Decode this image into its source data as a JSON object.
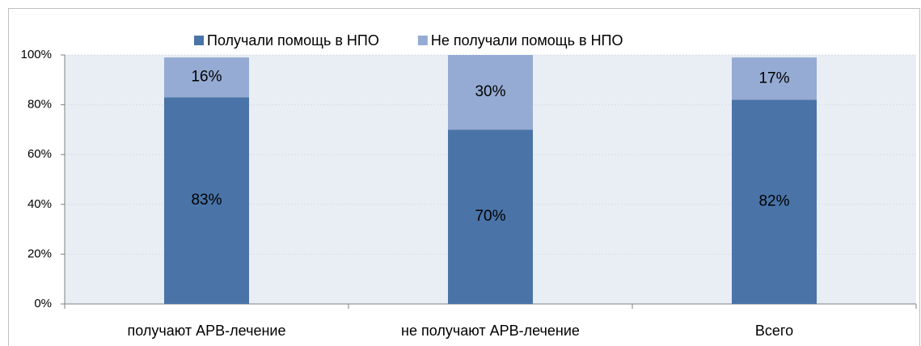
{
  "chart_data": {
    "type": "stacked_bar",
    "categories": [
      "получают АРВ-лечение",
      "не получают АРВ-лечение",
      "Всего"
    ],
    "series": [
      {
        "name": "Получали помощь в НПО",
        "color": "#4a74a8",
        "values": [
          83,
          70,
          82
        ],
        "value_labels": [
          "83%",
          "70%",
          "82%"
        ]
      },
      {
        "name": "Не получали помощь в НПО",
        "color": "#95abd3",
        "values": [
          16,
          30,
          17
        ],
        "value_labels": [
          "16%",
          "30%",
          "17%"
        ]
      }
    ],
    "ylim": [
      0,
      100
    ],
    "yticks": [
      {
        "value": 0,
        "label": "0%"
      },
      {
        "value": 20,
        "label": "20%"
      },
      {
        "value": 40,
        "label": "40%"
      },
      {
        "value": 60,
        "label": "60%"
      },
      {
        "value": 80,
        "label": "80%"
      },
      {
        "value": 100,
        "label": "100%"
      }
    ],
    "grid": true,
    "legend": "top"
  }
}
